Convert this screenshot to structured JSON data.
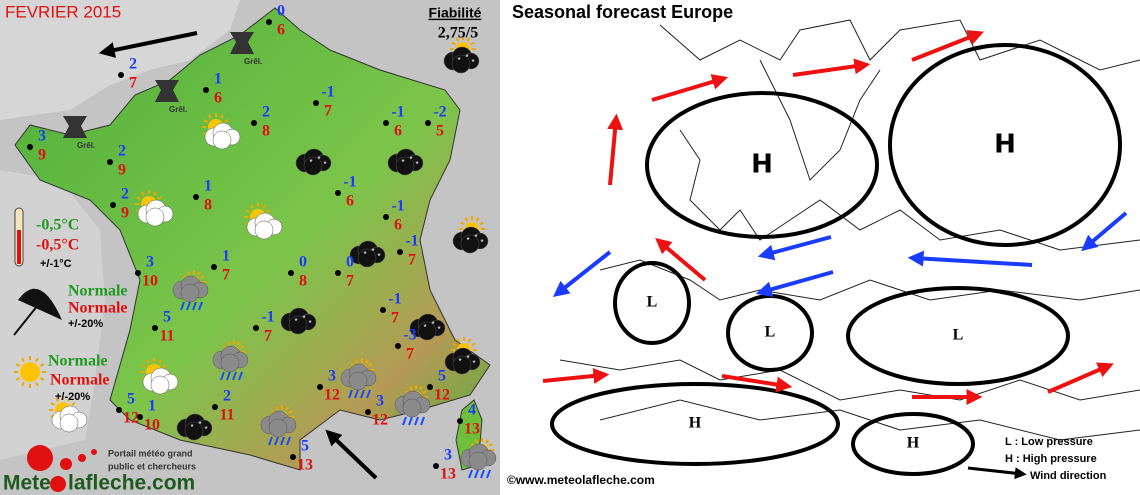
{
  "left": {
    "title": "FEVRIER 2015",
    "reliability": {
      "label": "Fiabilité",
      "value": "2,75/5"
    },
    "stations": [
      {
        "min": 0,
        "max": 6
      },
      {
        "min": 2,
        "max": 7
      },
      {
        "min": 1,
        "max": 6
      },
      {
        "min": 2,
        "max": 8
      },
      {
        "min": -1,
        "max": 7
      },
      {
        "min": -1,
        "max": 6
      },
      {
        "min": -2,
        "max": 5
      },
      {
        "min": 3,
        "max": 9
      },
      {
        "min": 2,
        "max": 9
      },
      {
        "min": 2,
        "max": 9
      },
      {
        "min": 1,
        "max": 8
      },
      {
        "min": -1,
        "max": 6
      },
      {
        "min": -1,
        "max": 6
      },
      {
        "min": -1,
        "max": 7
      },
      {
        "min": 1,
        "max": 7
      },
      {
        "min": 3,
        "max": 10
      },
      {
        "min": 0,
        "max": 8
      },
      {
        "min": 0,
        "max": 7
      },
      {
        "min": -1,
        "max": 7
      },
      {
        "min": -1,
        "max": 7
      },
      {
        "min": 5,
        "max": 11
      },
      {
        "min": -3,
        "max": 7
      },
      {
        "min": 3,
        "max": 12
      },
      {
        "min": 5,
        "max": 12
      },
      {
        "min": 5,
        "max": 12
      },
      {
        "min": 1,
        "max": 10
      },
      {
        "min": 2,
        "max": 11
      },
      {
        "min": 3,
        "max": 12
      },
      {
        "min": 4,
        "max": 13
      },
      {
        "min": 5,
        "max": 13
      },
      {
        "min": 3,
        "max": 13
      }
    ],
    "hail_labels": [
      "Grêl.",
      "Grêl.",
      "Grêl."
    ],
    "legend": {
      "temp_min": "-0,5°C",
      "temp_max": "-0,5°C",
      "temp_range": "+/-1°C",
      "rain_1": "Normale",
      "rain_2": "Normale",
      "rain_range": "+/-20%",
      "sun_1": "Normale",
      "sun_2": "Normale",
      "sun_range": "+/-20%"
    },
    "logo": {
      "tagline_1": "Portail météo grand",
      "tagline_2": "public et chercheurs",
      "name_1": "Mete",
      "name_2": "lafleche.com"
    }
  },
  "right": {
    "title": "Seasonal forecast Europe",
    "pressure_systems": [
      "H",
      "H",
      "L",
      "L",
      "L",
      "H",
      "H"
    ],
    "legend": {
      "low": "L : Low pressure",
      "high": "H : High pressure",
      "wind": "Wind direction"
    },
    "copyright": "©www.meteolafleche.com"
  }
}
